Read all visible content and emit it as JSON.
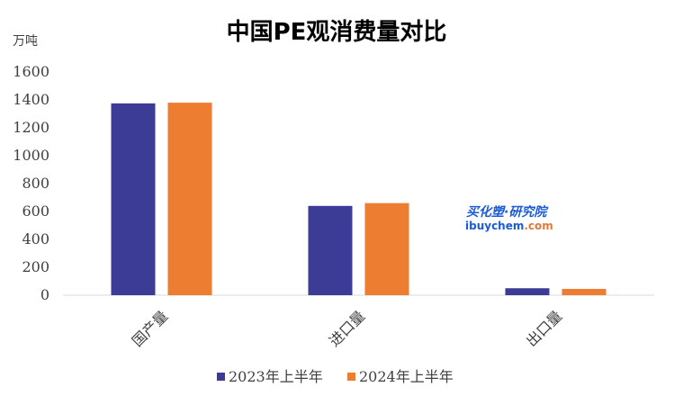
{
  "chart_data": {
    "type": "bar",
    "title": "中国PE观消费量对比",
    "ylabel": "万吨",
    "xlabel": "",
    "categories": [
      "国产量",
      "进口量",
      "出口量"
    ],
    "series": [
      {
        "name": "2023年上半年",
        "values": [
          1375,
          640,
          50
        ],
        "color": "#3c3b96"
      },
      {
        "name": "2024年上半年",
        "values": [
          1380,
          660,
          45
        ],
        "color": "#ed7d31"
      }
    ],
    "ylim": [
      0,
      1600
    ],
    "yticks": [
      "0",
      "200",
      "400",
      "600",
      "800",
      "1000",
      "1200",
      "1400",
      "1600"
    ],
    "grid": false,
    "legend": "bottom"
  },
  "watermark": {
    "line1": "买化塑·研究院",
    "line2_left": "ibuychem",
    "line2_right": ".com",
    "color_primary": "#1a5bd6",
    "color_secondary": "#e07a3a"
  }
}
